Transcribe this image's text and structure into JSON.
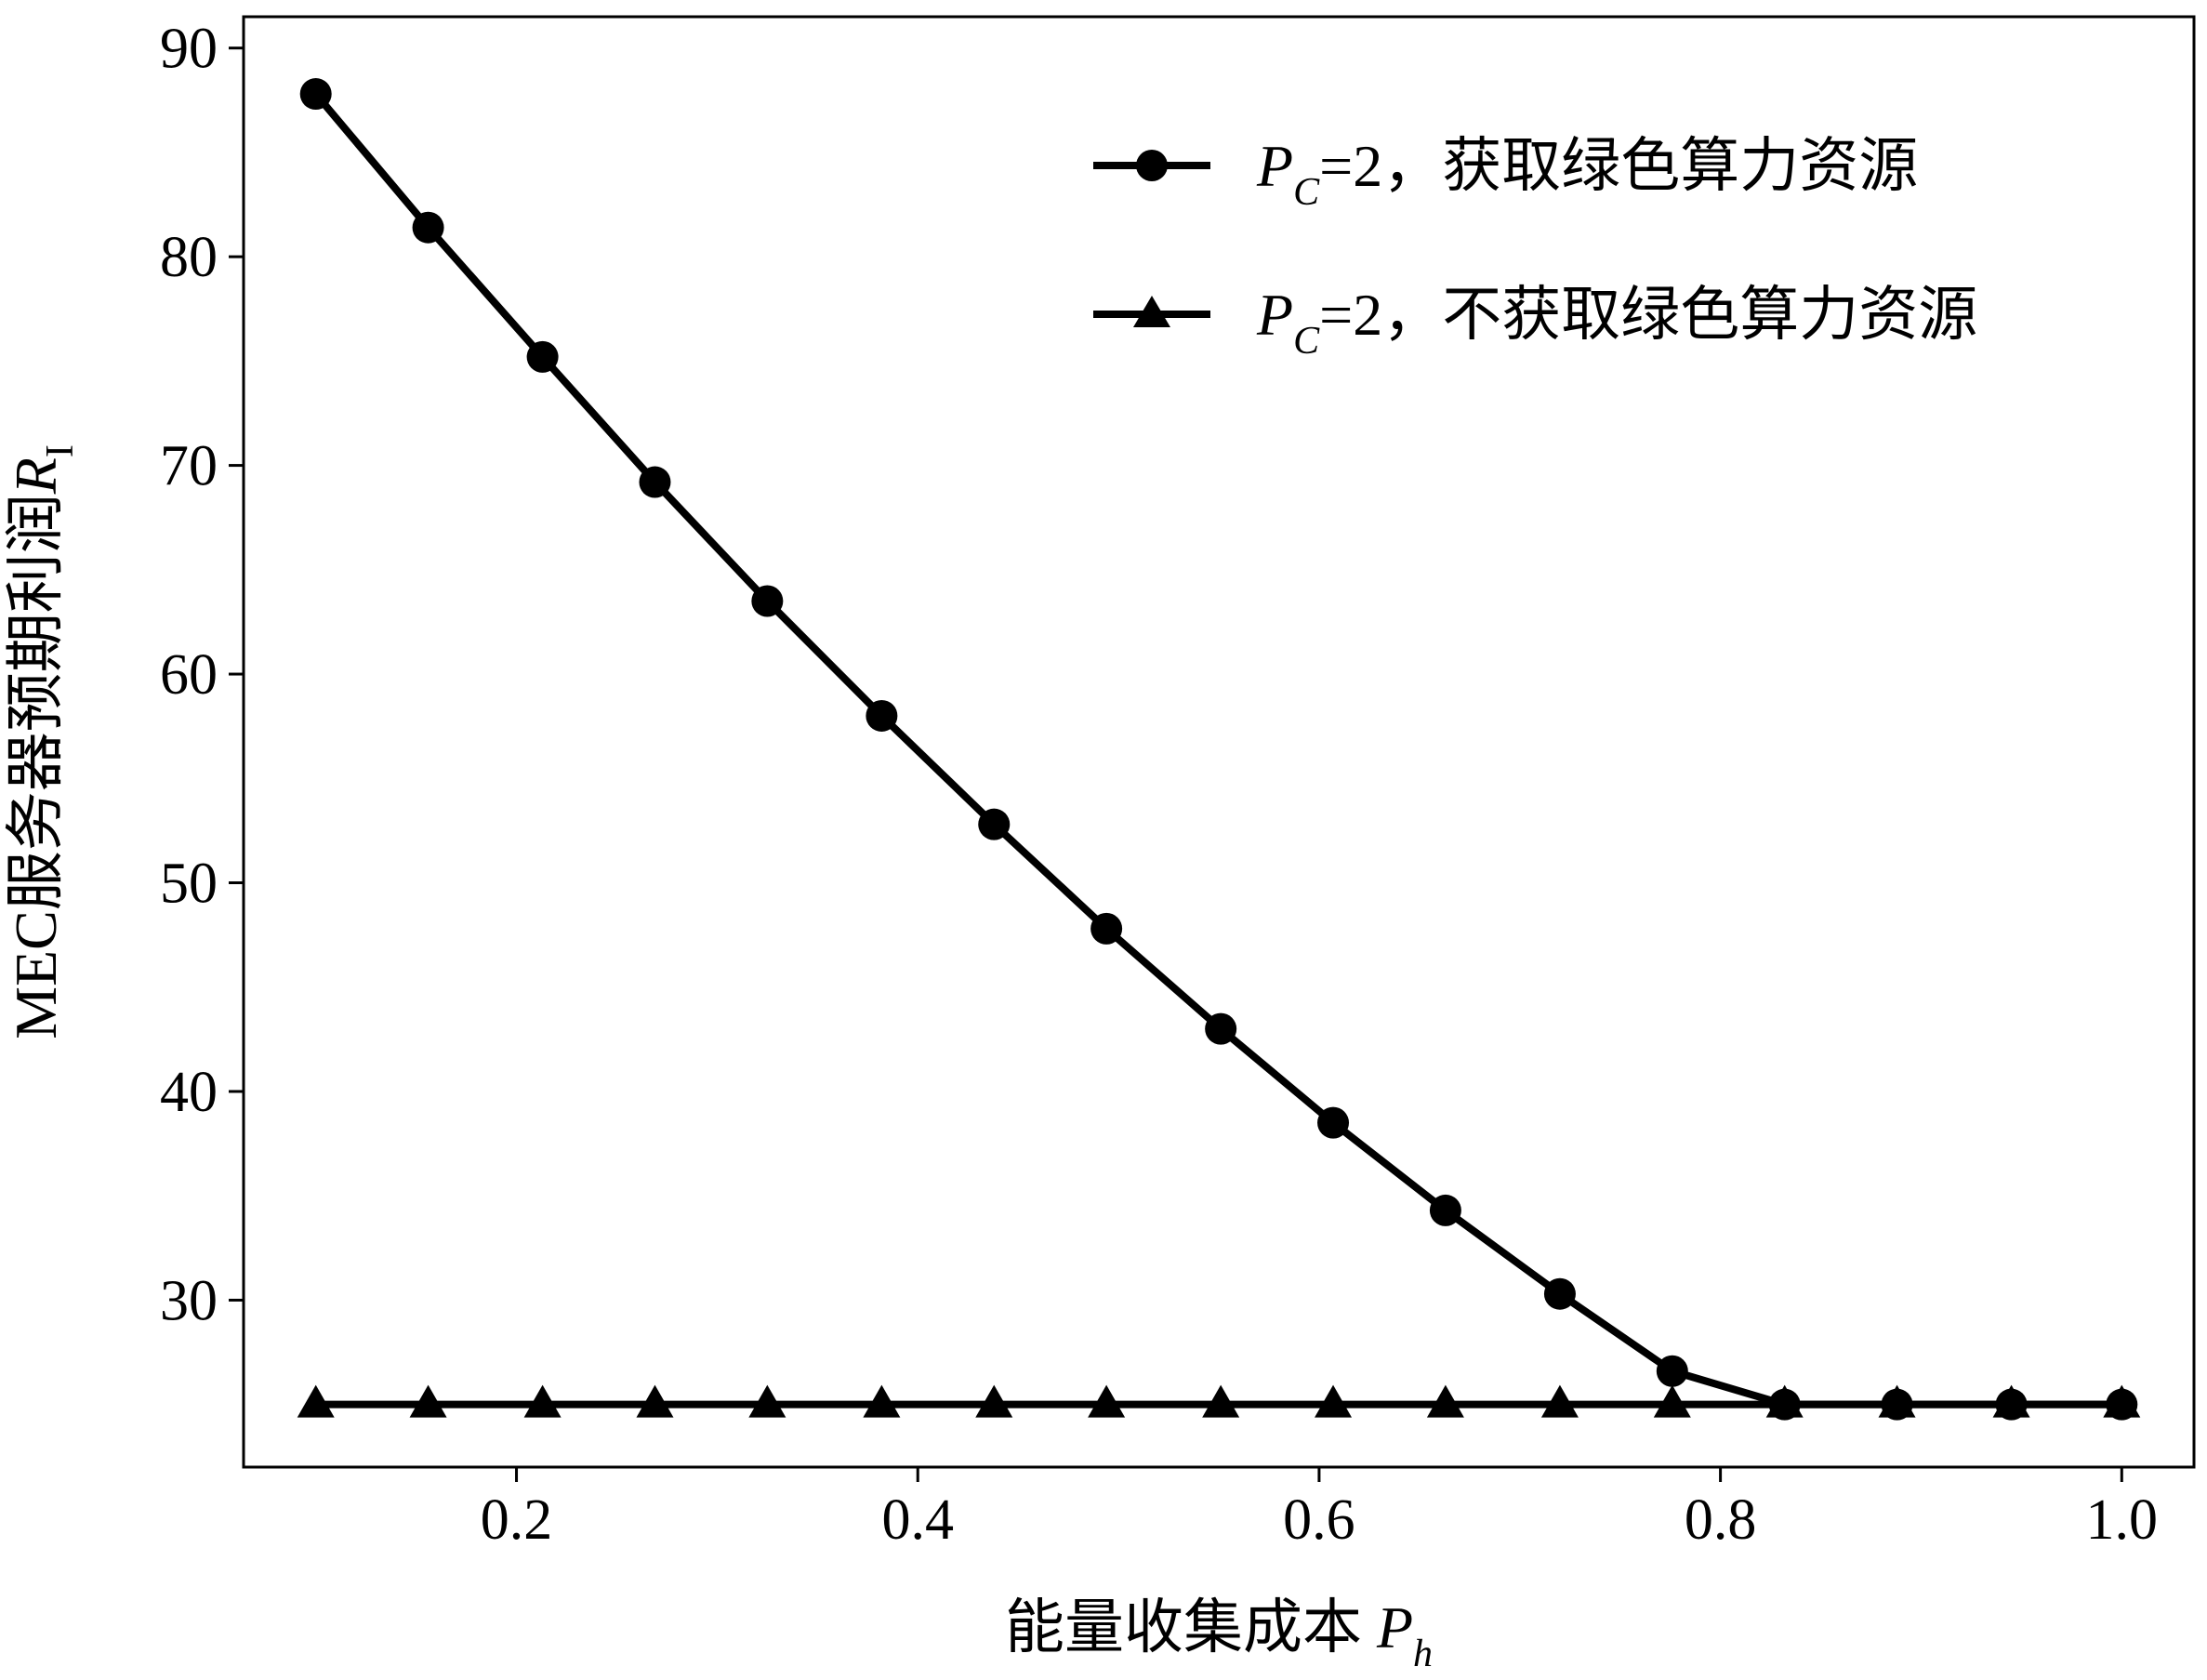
{
  "chart_data": {
    "type": "line",
    "xlabel": {
      "prefix": "能量收集成本 ",
      "var": "P",
      "sub": "h"
    },
    "ylabel": {
      "prefix": "MEC服务器预期利润",
      "var": "R",
      "sub": "I"
    },
    "xlim": [
      0.064,
      1.036
    ],
    "ylim": [
      22.0,
      91.5
    ],
    "xticks": [
      0.2,
      0.4,
      0.6,
      0.8,
      1.0
    ],
    "xtick_labels": [
      "0.2",
      "0.4",
      "0.6",
      "0.8",
      "1.0"
    ],
    "yticks": [
      30,
      40,
      50,
      60,
      70,
      80,
      90
    ],
    "ytick_labels": [
      "30",
      "40",
      "50",
      "60",
      "70",
      "80",
      "90"
    ],
    "grid": false,
    "legend_position": "top-right",
    "x": [
      0.1,
      0.156,
      0.213,
      0.269,
      0.325,
      0.382,
      0.438,
      0.494,
      0.551,
      0.607,
      0.663,
      0.72,
      0.776,
      0.832,
      0.888,
      0.945,
      1.0
    ],
    "series": [
      {
        "name": {
          "var": "P",
          "sub": "C",
          "rest": "=2，获取绿色算力资源"
        },
        "marker": "circle",
        "color": "#000000",
        "values": [
          87.8,
          81.4,
          75.2,
          69.2,
          63.5,
          58.0,
          52.8,
          47.8,
          43.0,
          38.5,
          34.3,
          30.3,
          26.6,
          25.0,
          25.0,
          25.0,
          25.0
        ]
      },
      {
        "name": {
          "var": "P",
          "sub": "C",
          "rest": "=2，不获取绿色算力资源"
        },
        "marker": "triangle",
        "color": "#000000",
        "values": [
          25.0,
          25.0,
          25.0,
          25.0,
          25.0,
          25.0,
          25.0,
          25.0,
          25.0,
          25.0,
          25.0,
          25.0,
          25.0,
          25.0,
          25.0,
          25.0,
          25.0
        ]
      }
    ]
  }
}
